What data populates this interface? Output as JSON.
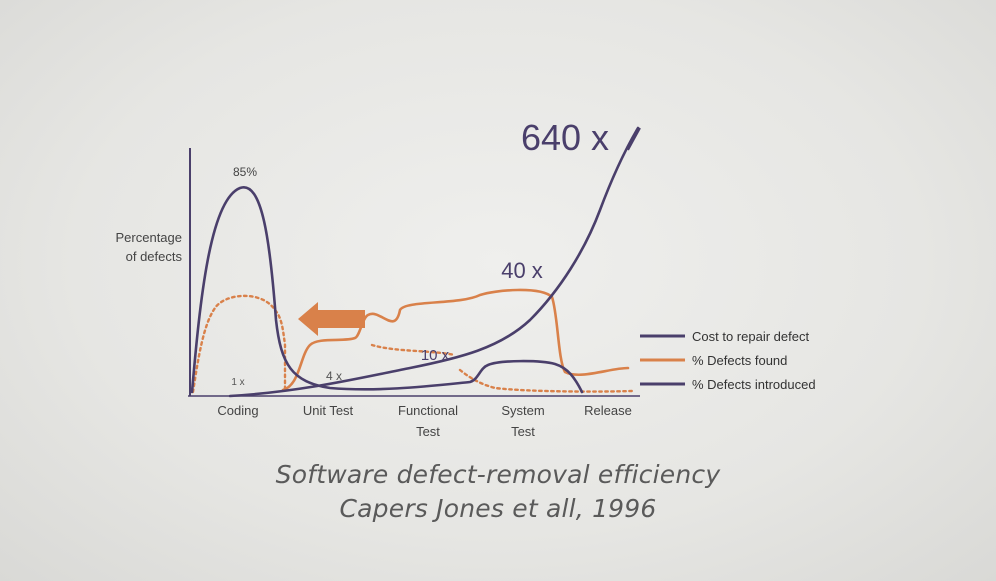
{
  "chart_data": {
    "type": "line",
    "ylabel": [
      "Percentage",
      "of defects"
    ],
    "categories": [
      "Coding",
      "Unit Test",
      "Functional Test",
      "System Test",
      "Release"
    ],
    "category_lines": [
      [
        "Coding"
      ],
      [
        "Unit Test"
      ],
      [
        "Functional",
        "Test"
      ],
      [
        "System",
        "Test"
      ],
      [
        "Release"
      ]
    ],
    "grid": false,
    "legend_position": "right",
    "annotations": {
      "peak_label": "85%",
      "cost_labels": [
        "1 x",
        "4 x",
        "10 x",
        "40 x",
        "640 x"
      ]
    },
    "series": [
      {
        "name": "Cost to repair defect",
        "color": "#4a3f6b",
        "multipliers": [
          1,
          4,
          10,
          40,
          640
        ]
      },
      {
        "name": "% Defects found",
        "color": "#d9814a",
        "x": [
          0,
          0.5,
          1,
          1.5,
          2,
          2.5,
          3,
          3.3,
          3.5,
          4,
          4.5
        ],
        "values": [
          2,
          45,
          40,
          5,
          25,
          30,
          45,
          48,
          15,
          12,
          10
        ]
      },
      {
        "name": "% Defects introduced",
        "color": "#4a3f6b",
        "x": [
          0,
          0.2,
          0.5,
          0.8,
          1,
          1.5,
          2,
          2.5,
          3,
          3.5,
          4,
          4.3
        ],
        "values": [
          0,
          70,
          85,
          70,
          5,
          2,
          2,
          3,
          20,
          18,
          5,
          0
        ]
      }
    ]
  },
  "caption": {
    "line1": "Software defect-removal efficiency",
    "line2": "Capers Jones et all, 1996"
  }
}
